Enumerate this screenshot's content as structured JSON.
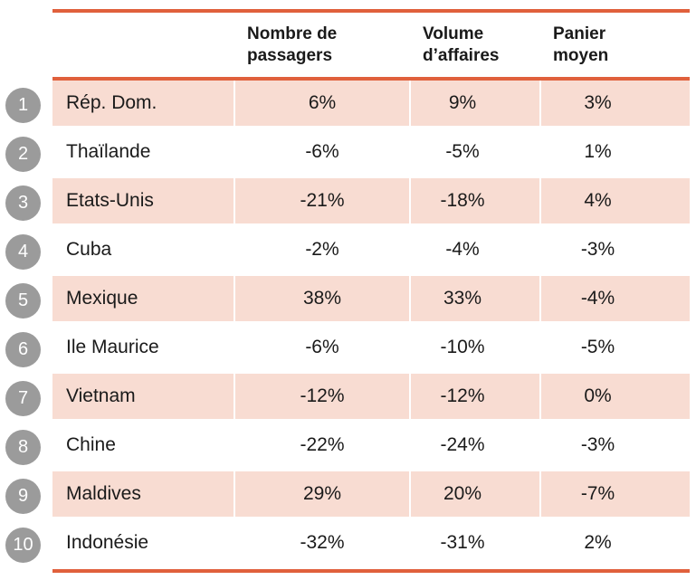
{
  "colors": {
    "accent": "#e0603c",
    "row_alt": "#f8dcd2",
    "badge": "#9b9b9b",
    "text": "#1a1a1a"
  },
  "table": {
    "headers": {
      "passengers": "Nombre de\npassagers",
      "volume": "Volume\nd’affaires",
      "basket": "Panier\nmoyen"
    },
    "rows": [
      {
        "rank": "1",
        "country": "Rép. Dom.",
        "passengers": "6%",
        "volume": "9%",
        "basket": "3%"
      },
      {
        "rank": "2",
        "country": "Thaïlande",
        "passengers": "-6%",
        "volume": "-5%",
        "basket": "1%"
      },
      {
        "rank": "3",
        "country": "Etats-Unis",
        "passengers": "-21%",
        "volume": "-18%",
        "basket": "4%"
      },
      {
        "rank": "4",
        "country": "Cuba",
        "passengers": "-2%",
        "volume": "-4%",
        "basket": "-3%"
      },
      {
        "rank": "5",
        "country": "Mexique",
        "passengers": "38%",
        "volume": "33%",
        "basket": "-4%"
      },
      {
        "rank": "6",
        "country": "Ile Maurice",
        "passengers": "-6%",
        "volume": "-10%",
        "basket": "-5%"
      },
      {
        "rank": "7",
        "country": "Vietnam",
        "passengers": "-12%",
        "volume": "-12%",
        "basket": "0%"
      },
      {
        "rank": "8",
        "country": "Chine",
        "passengers": "-22%",
        "volume": "-24%",
        "basket": "-3%"
      },
      {
        "rank": "9",
        "country": "Maldives",
        "passengers": "29%",
        "volume": "20%",
        "basket": "-7%"
      },
      {
        "rank": "10",
        "country": "Indonésie",
        "passengers": "-32%",
        "volume": "-31%",
        "basket": "2%"
      }
    ]
  },
  "chart_data": {
    "type": "table",
    "title": "",
    "categories": [
      "Rép. Dom.",
      "Thaïlande",
      "Etats-Unis",
      "Cuba",
      "Mexique",
      "Ile Maurice",
      "Vietnam",
      "Chine",
      "Maldives",
      "Indonésie"
    ],
    "ranks": [
      1,
      2,
      3,
      4,
      5,
      6,
      7,
      8,
      9,
      10
    ],
    "series": [
      {
        "name": "Nombre de passagers",
        "values": [
          6,
          -6,
          -21,
          -2,
          38,
          -6,
          -12,
          -22,
          29,
          -32
        ]
      },
      {
        "name": "Volume d’affaires",
        "values": [
          9,
          -5,
          -18,
          -4,
          33,
          -10,
          -12,
          -24,
          20,
          -31
        ]
      },
      {
        "name": "Panier moyen",
        "values": [
          3,
          1,
          4,
          -3,
          -4,
          -5,
          0,
          -3,
          -7,
          2
        ]
      }
    ],
    "unit": "%",
    "layout_hints": {
      "alt_row_highlight": "odd ranks",
      "accent_rules": "top, below header, bottom"
    }
  }
}
